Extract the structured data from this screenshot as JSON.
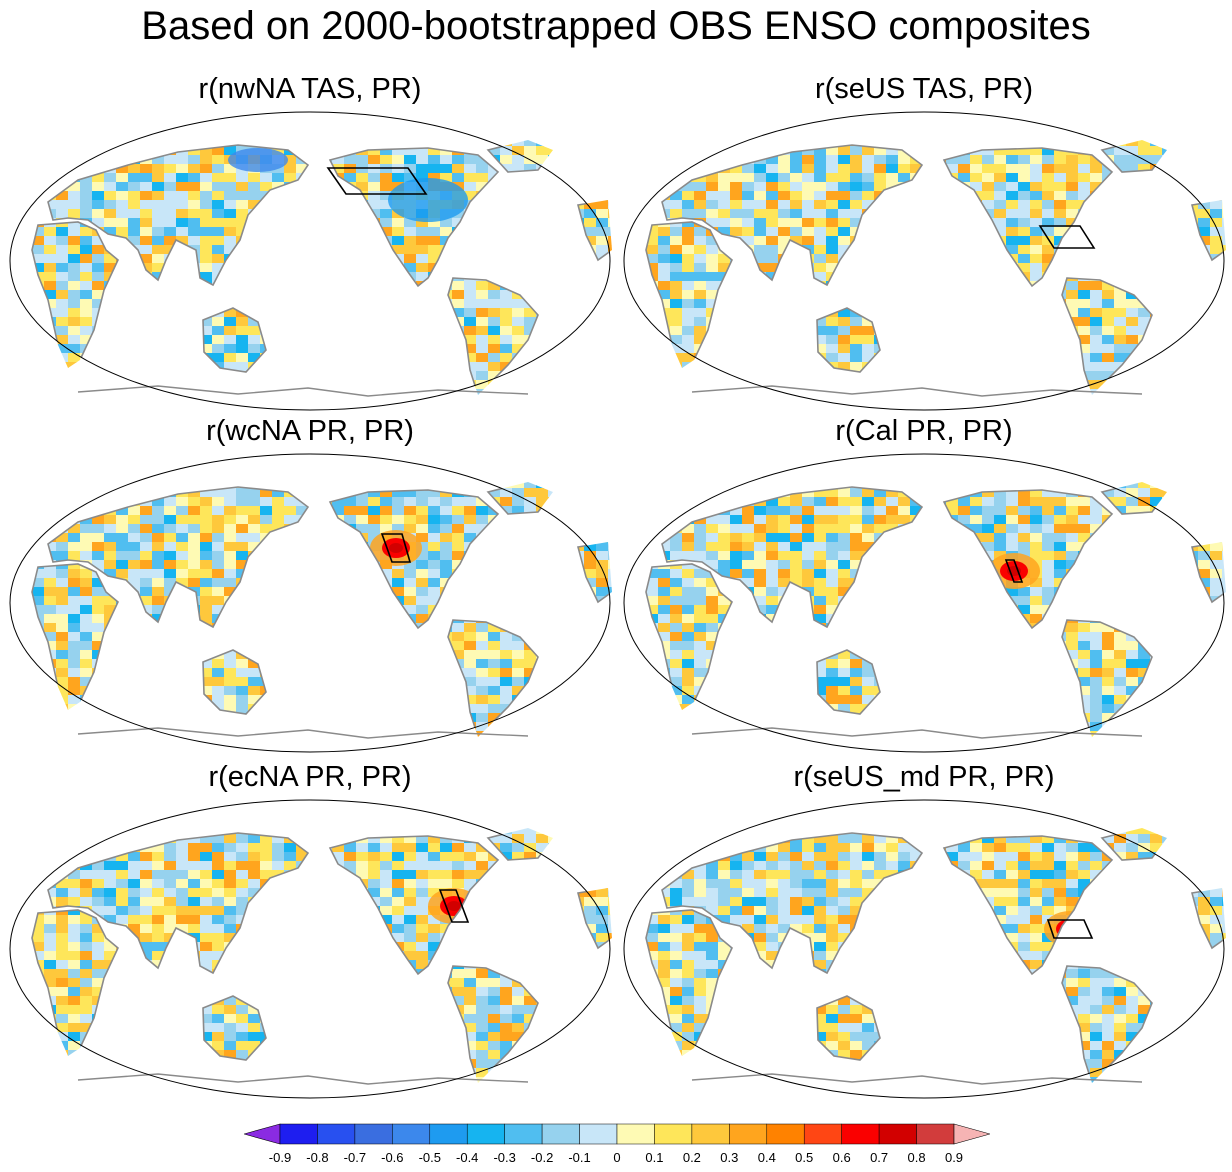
{
  "title": "Based on 2000-bootstrapped OBS ENSO composites",
  "panels": [
    {
      "title": "r(nwNA TAS, PR)",
      "region": "nwNA",
      "pattern": "mixed-blue-north"
    },
    {
      "title": "r(seUS TAS, PR)",
      "region": "seUS",
      "pattern": "mixed-warm"
    },
    {
      "title": "r(wcNA PR, PR)",
      "region": "wcNA",
      "pattern": "mixed"
    },
    {
      "title": "r(Cal PR, PR)",
      "region": "Cal",
      "pattern": "mixed"
    },
    {
      "title": "r(ecNA PR, PR)",
      "region": "ecNA",
      "pattern": "mixed"
    },
    {
      "title": "r(seUS_md PR, PR)",
      "region": "seUS_md",
      "pattern": "mixed"
    }
  ],
  "colorbar": {
    "labels": [
      "-0.9",
      "-0.8",
      "-0.7",
      "-0.6",
      "-0.5",
      "-0.4",
      "-0.3",
      "-0.2",
      "-0.1",
      "0",
      "0.1",
      "0.2",
      "0.3",
      "0.4",
      "0.5",
      "0.6",
      "0.7",
      "0.8",
      "0.9"
    ],
    "colors": [
      "#1e1ef0",
      "#2850f0",
      "#3a6ee0",
      "#3c88ec",
      "#1e9bf0",
      "#16b4f0",
      "#50bef0",
      "#96d2ee",
      "#c8e6f8",
      "#fefab4",
      "#fee65a",
      "#fec83c",
      "#ffa51e",
      "#ff8200",
      "#ff4614",
      "#fa0000",
      "#d20000",
      "#d23c3c"
    ],
    "low_color": "#8a2be2",
    "high_color": "#f6b4b4"
  }
}
